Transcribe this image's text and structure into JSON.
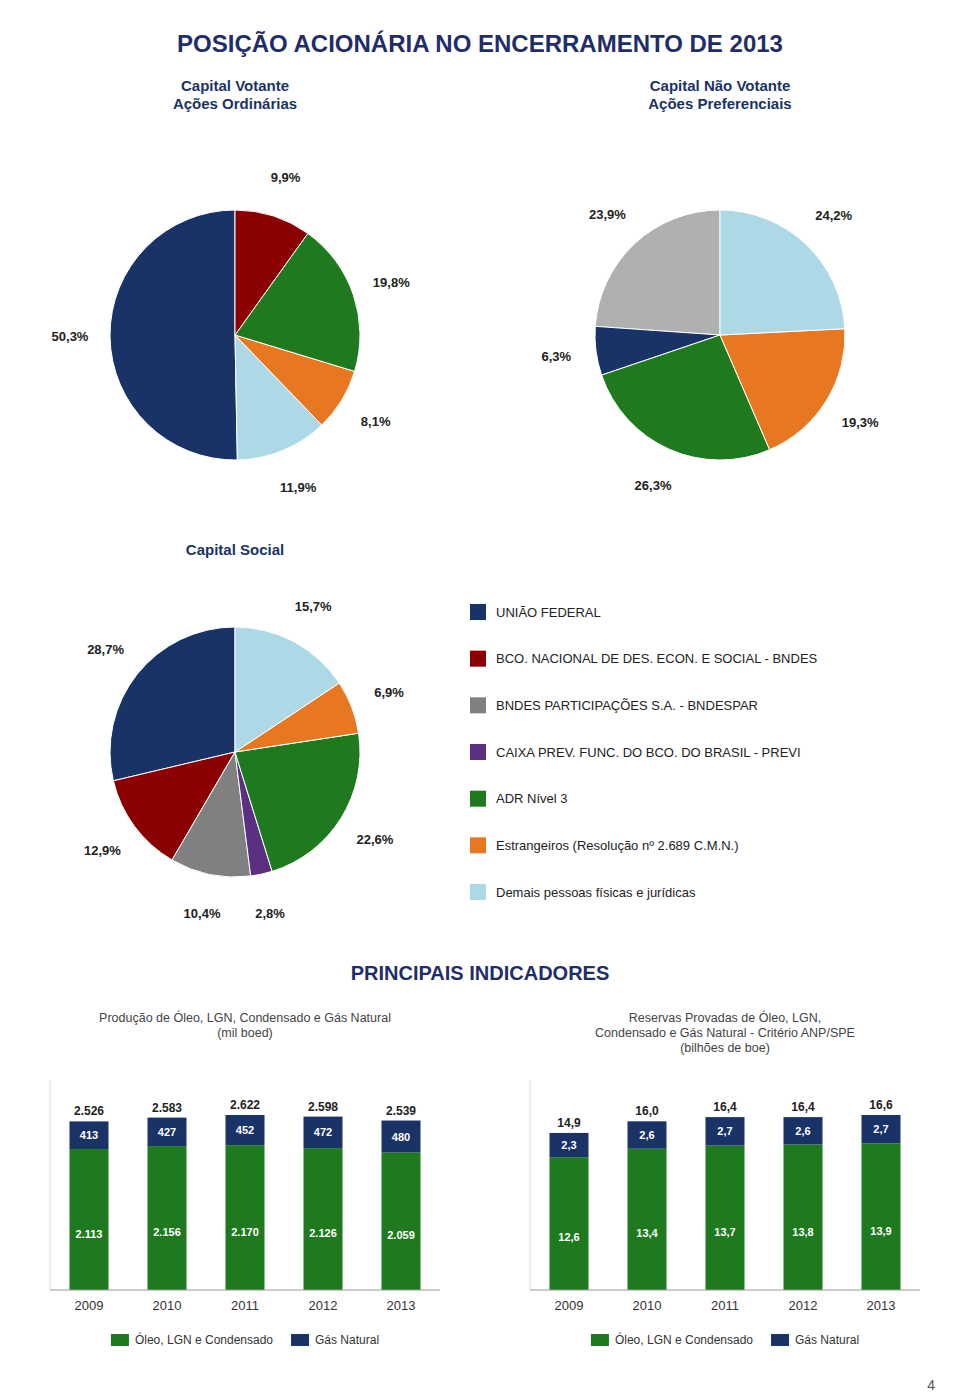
{
  "title": "POSIÇÃO ACIONÁRIA NO ENCERRAMENTO DE 2013",
  "subtitle": "PRINCIPAIS INDICADORES",
  "annotations": [
    "4"
  ],
  "chart_data": [
    {
      "type": "pie",
      "title": "Capital Votante\nAções Ordinárias",
      "values": [
        50.3,
        11.9,
        8.1,
        19.8,
        9.9
      ],
      "value_labels": [
        "50,3%",
        "11,9%",
        "8,1%",
        "19,8%",
        "9,9%"
      ],
      "colors": [
        "#1a3366",
        "#add8e6",
        "#e87722",
        "#1f7a1f",
        "#8b0000"
      ],
      "data_labels": true
    },
    {
      "type": "pie",
      "title": "Capital Não Votante\nAções Preferenciais",
      "values": [
        23.9,
        6.3,
        26.3,
        19.3,
        24.2
      ],
      "value_labels": [
        "23,9%",
        "6,3%",
        "26,3%",
        "19,3%",
        "24,2%"
      ],
      "colors": [
        "#b0b0b0",
        "#1a3366",
        "#1f7a1f",
        "#e87722",
        "#add8e6"
      ],
      "data_labels": true
    },
    {
      "type": "pie",
      "title": "Capital Social",
      "categories": [
        "UNIÃO FEDERAL",
        "BCO. NACIONAL DE DES. ECON. E SOCIAL - BNDES",
        "BNDES PARTICIPAÇÕES S.A. - BNDESPAR",
        "CAIXA PREV. FUNC. DO BCO. DO BRASIL - PREVI",
        "ADR Nível 3",
        "Estrangeiros (Resolução nº 2.689 C.M.N.)",
        "Demais pessoas físicas e jurídicas"
      ],
      "values": [
        28.7,
        12.9,
        10.4,
        2.8,
        22.6,
        6.9,
        15.7
      ],
      "value_labels": [
        "28,7%",
        "12,9%",
        "10,4%",
        "2,8%",
        "22,6%",
        "6,9%",
        "15,7%"
      ],
      "colors": [
        "#1a3366",
        "#8b0000",
        "#808080",
        "#5b3080",
        "#1f7a1f",
        "#e87722",
        "#add8e6"
      ],
      "data_labels": true,
      "legend": "right"
    },
    {
      "type": "bar",
      "title": "Produção de Óleo, LGN, Condensado e Gás Natural\n(mil boed)",
      "categories": [
        "2009",
        "2010",
        "2011",
        "2012",
        "2013"
      ],
      "series": [
        {
          "name": "Óleo, LGN e Condensado",
          "color": "#1f7a1f",
          "values": [
            2113,
            2156,
            2170,
            2126,
            2059
          ],
          "value_labels": [
            "2.113",
            "2.156",
            "2.170",
            "2.126",
            "2.059"
          ]
        },
        {
          "name": "Gás Natural",
          "color": "#1a3366",
          "values": [
            413,
            427,
            452,
            472,
            480
          ],
          "value_labels": [
            "413",
            "427",
            "452",
            "472",
            "480"
          ]
        }
      ],
      "totals": [
        2526,
        2583,
        2622,
        2598,
        2539
      ],
      "total_labels": [
        "2.526",
        "2.583",
        "2.622",
        "2.598",
        "2.539"
      ],
      "ylim": [
        0,
        3146.4
      ],
      "stacked": true,
      "data_labels": true,
      "tick_labels": "x",
      "grid": false,
      "legend": "bottom"
    },
    {
      "type": "bar",
      "title": "Reservas Provadas de Óleo, LGN,\nCondensado e Gás Natural - Critério ANP/SPE\n(bilhões de boe)",
      "categories": [
        "2009",
        "2010",
        "2011",
        "2012",
        "2013"
      ],
      "series": [
        {
          "name": "Óleo, LGN e Condensado",
          "color": "#1f7a1f",
          "values": [
            12.6,
            13.4,
            13.7,
            13.8,
            13.9
          ],
          "value_labels": [
            "12,6",
            "13,4",
            "13,7",
            "13,8",
            "13,9"
          ]
        },
        {
          "name": "Gás Natural",
          "color": "#1a3366",
          "values": [
            2.3,
            2.6,
            2.7,
            2.6,
            2.7
          ],
          "value_labels": [
            "2,3",
            "2,6",
            "2,7",
            "2,6",
            "2,7"
          ]
        }
      ],
      "totals": [
        14.9,
        16.0,
        16.4,
        16.4,
        16.6
      ],
      "total_labels": [
        "14,9",
        "16,0",
        "16,4",
        "16,4",
        "16,6"
      ],
      "ylim": [
        0,
        19.92
      ],
      "stacked": true,
      "data_labels": true,
      "tick_labels": "x",
      "grid": false,
      "legend": "bottom"
    }
  ]
}
